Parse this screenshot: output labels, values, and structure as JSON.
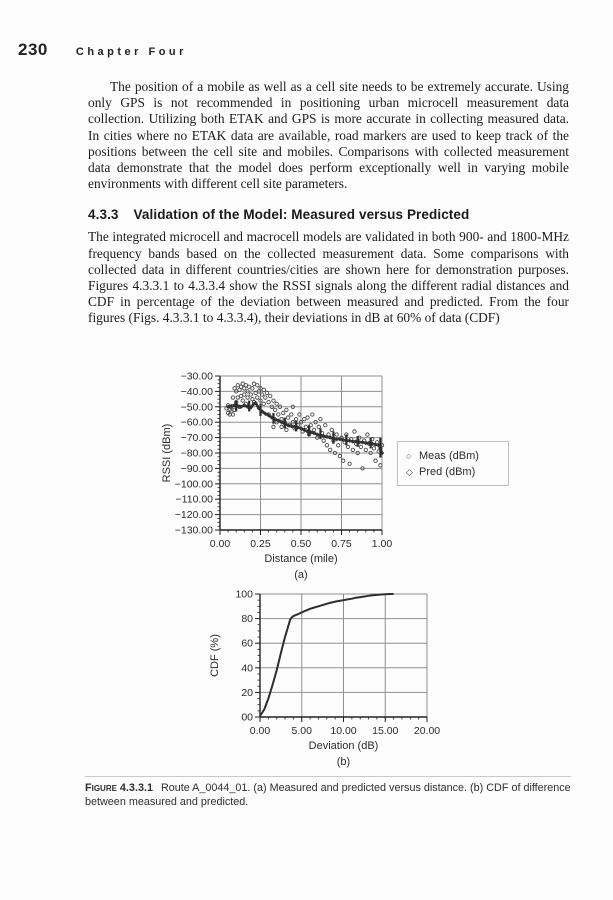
{
  "header": {
    "page_number": "230",
    "chapter_title": "Chapter Four"
  },
  "content": {
    "paragraph_1": "The position of a mobile as well as a cell site needs to be extremely accurate. Using only GPS is not recommended in positioning urban microcell measurement data collection. Utilizing both ETAK and GPS is more accurate in collecting measured data. In cities where no ETAK data are available, road markers are used to keep track of the positions between the cell site and mobiles. Comparisons with collected measurement data demonstrate that the model does perform exceptionally well in varying mobile environments with different cell site parameters.",
    "section_number": "4.3.3",
    "section_title": "Validation of the Model: Measured versus Predicted",
    "paragraph_2": "The integrated microcell and macrocell models are validated in both 900- and 1800-MHz frequency bands based on the collected measurement data. Some comparisons with collected data in different countries/cities are shown here for demonstration purposes. Figures 4.3.3.1 to 4.3.3.4 show the RSSI signals along the different radial distances and CDF in percentage of the deviation between measured and predicted. From the four figures (Figs. 4.3.3.1 to 4.3.3.4), their deviations in dB at 60% of data (CDF)"
  },
  "figure": {
    "caption_label": "Figure 4.3.3.1",
    "caption_text": "Route A_0044_01. (a) Measured and predicted versus distance. (b) CDF of difference between measured and predicted."
  },
  "chart_data": [
    {
      "type": "scatter",
      "sublabel": "(a)",
      "xlabel": "Distance (mile)",
      "ylabel": "RSSI (dBm)",
      "xlim": [
        0,
        1
      ],
      "ylim": [
        -130,
        -30
      ],
      "grid": true,
      "legend_position": "right",
      "xticks": {
        "values": [
          0,
          0.25,
          0.5,
          0.75,
          1
        ],
        "labels": [
          "0.00",
          "0.25",
          "0.50",
          "0.75",
          "1.00"
        ],
        "minor_step": 0.05
      },
      "yticks": {
        "values": [
          -30,
          -40,
          -50,
          -60,
          -70,
          -80,
          -90,
          -100,
          -110,
          -120,
          -130
        ],
        "labels": [
          "−30.00",
          "−40.00",
          "−50.00",
          "−60.00",
          "−70.00",
          "−80.00",
          "−90.00",
          "−100.00",
          "−110.00",
          "−120.00",
          "−130.00"
        ],
        "minor_step": 2.5
      },
      "series": [
        {
          "name": "Meas (dBm)",
          "marker": "circle",
          "points": [
            [
              0.04,
              -51
            ],
            [
              0.05,
              -54
            ],
            [
              0.05,
              -49
            ],
            [
              0.06,
              -55
            ],
            [
              0.06,
              -52
            ],
            [
              0.07,
              -53
            ],
            [
              0.07,
              -50
            ],
            [
              0.08,
              -55
            ],
            [
              0.08,
              -44
            ],
            [
              0.09,
              -38
            ],
            [
              0.09,
              -52
            ],
            [
              0.1,
              -40
            ],
            [
              0.1,
              -47
            ],
            [
              0.11,
              -36
            ],
            [
              0.11,
              -44
            ],
            [
              0.12,
              -39
            ],
            [
              0.12,
              -50
            ],
            [
              0.13,
              -37
            ],
            [
              0.13,
              -43
            ],
            [
              0.14,
              -35
            ],
            [
              0.14,
              -46
            ],
            [
              0.15,
              -38
            ],
            [
              0.15,
              -42
            ],
            [
              0.16,
              -36
            ],
            [
              0.16,
              -48
            ],
            [
              0.17,
              -40
            ],
            [
              0.17,
              -44
            ],
            [
              0.18,
              -37
            ],
            [
              0.18,
              -50
            ],
            [
              0.19,
              -42
            ],
            [
              0.2,
              -38
            ],
            [
              0.2,
              -45
            ],
            [
              0.21,
              -35
            ],
            [
              0.21,
              -47
            ],
            [
              0.22,
              -41
            ],
            [
              0.23,
              -36
            ],
            [
              0.23,
              -44
            ],
            [
              0.24,
              -40
            ],
            [
              0.25,
              -38
            ],
            [
              0.25,
              -46
            ],
            [
              0.26,
              -42
            ],
            [
              0.27,
              -48
            ],
            [
              0.27,
              -39
            ],
            [
              0.28,
              -44
            ],
            [
              0.29,
              -41
            ],
            [
              0.3,
              -47
            ],
            [
              0.3,
              -55
            ],
            [
              0.31,
              -43
            ],
            [
              0.32,
              -50
            ],
            [
              0.33,
              -46
            ],
            [
              0.33,
              -63
            ],
            [
              0.34,
              -52
            ],
            [
              0.35,
              -48
            ],
            [
              0.35,
              -60
            ],
            [
              0.36,
              -55
            ],
            [
              0.37,
              -50
            ],
            [
              0.38,
              -58
            ],
            [
              0.38,
              -63
            ],
            [
              0.39,
              -54
            ],
            [
              0.4,
              -60
            ],
            [
              0.41,
              -52
            ],
            [
              0.41,
              -65
            ],
            [
              0.42,
              -57
            ],
            [
              0.43,
              -62
            ],
            [
              0.44,
              -55
            ],
            [
              0.45,
              -60
            ],
            [
              0.45,
              -50
            ],
            [
              0.46,
              -64
            ],
            [
              0.47,
              -58
            ],
            [
              0.48,
              -62
            ],
            [
              0.49,
              -55
            ],
            [
              0.5,
              -60
            ],
            [
              0.51,
              -66
            ],
            [
              0.52,
              -58
            ],
            [
              0.53,
              -63
            ],
            [
              0.54,
              -57
            ],
            [
              0.55,
              -68
            ],
            [
              0.56,
              -62
            ],
            [
              0.57,
              -55
            ],
            [
              0.58,
              -65
            ],
            [
              0.59,
              -60
            ],
            [
              0.6,
              -70
            ],
            [
              0.61,
              -63
            ],
            [
              0.62,
              -58
            ],
            [
              0.63,
              -67
            ],
            [
              0.64,
              -72
            ],
            [
              0.65,
              -62
            ],
            [
              0.66,
              -75
            ],
            [
              0.67,
              -68
            ],
            [
              0.68,
              -78
            ],
            [
              0.69,
              -65
            ],
            [
              0.7,
              -72
            ],
            [
              0.71,
              -80
            ],
            [
              0.72,
              -68
            ],
            [
              0.73,
              -75
            ],
            [
              0.74,
              -82
            ],
            [
              0.75,
              -70
            ],
            [
              0.76,
              -85
            ],
            [
              0.77,
              -73
            ],
            [
              0.78,
              -68
            ],
            [
              0.79,
              -76
            ],
            [
              0.8,
              -87
            ],
            [
              0.81,
              -71
            ],
            [
              0.82,
              -78
            ],
            [
              0.83,
              -66
            ],
            [
              0.84,
              -74
            ],
            [
              0.85,
              -80
            ],
            [
              0.86,
              -70
            ],
            [
              0.87,
              -76
            ],
            [
              0.88,
              -90
            ],
            [
              0.89,
              -72
            ],
            [
              0.9,
              -78
            ],
            [
              0.91,
              -68
            ],
            [
              0.92,
              -74
            ],
            [
              0.93,
              -80
            ],
            [
              0.94,
              -71
            ],
            [
              0.95,
              -77
            ],
            [
              0.96,
              -85
            ],
            [
              0.97,
              -73
            ],
            [
              0.98,
              -79
            ],
            [
              0.99,
              -88
            ],
            [
              1.0,
              -75
            ]
          ]
        },
        {
          "name": "Pred (dBm)",
          "marker": "diamond",
          "line": true,
          "line_width": 2.6,
          "points": [
            [
              0.05,
              -50
            ],
            [
              0.07,
              -49.5
            ],
            [
              0.09,
              -49
            ],
            [
              0.11,
              -49.5
            ],
            [
              0.13,
              -50
            ],
            [
              0.15,
              -49
            ],
            [
              0.17,
              -50
            ],
            [
              0.19,
              -50.5
            ],
            [
              0.21,
              -48
            ],
            [
              0.22,
              -47.5
            ],
            [
              0.24,
              -51
            ],
            [
              0.26,
              -53
            ],
            [
              0.28,
              -54.5
            ],
            [
              0.3,
              -55.5
            ],
            [
              0.32,
              -57
            ],
            [
              0.34,
              -58
            ],
            [
              0.36,
              -59
            ],
            [
              0.38,
              -60
            ],
            [
              0.4,
              -61
            ],
            [
              0.42,
              -62
            ],
            [
              0.44,
              -62.5
            ],
            [
              0.46,
              -63
            ],
            [
              0.48,
              -63.5
            ],
            [
              0.5,
              -64
            ],
            [
              0.52,
              -65
            ],
            [
              0.54,
              -66
            ],
            [
              0.56,
              -66.5
            ],
            [
              0.58,
              -67
            ],
            [
              0.6,
              -68
            ],
            [
              0.62,
              -68.5
            ],
            [
              0.64,
              -69
            ],
            [
              0.66,
              -69.5
            ],
            [
              0.68,
              -70
            ],
            [
              0.7,
              -70.5
            ],
            [
              0.72,
              -71
            ],
            [
              0.74,
              -71
            ],
            [
              0.76,
              -71.5
            ],
            [
              0.78,
              -72
            ],
            [
              0.8,
              -72
            ],
            [
              0.82,
              -72.5
            ],
            [
              0.84,
              -72.5
            ],
            [
              0.86,
              -73
            ],
            [
              0.88,
              -73
            ],
            [
              0.9,
              -73.5
            ],
            [
              0.92,
              -73.5
            ],
            [
              0.94,
              -74
            ],
            [
              0.96,
              -74.5
            ],
            [
              0.98,
              -75
            ],
            [
              0.99,
              -77
            ],
            [
              1.0,
              -80
            ]
          ],
          "spread_bars": [
            [
              0.1,
              -46,
              -53
            ],
            [
              0.18,
              -46,
              -53
            ],
            [
              0.25,
              -48,
              -56
            ],
            [
              0.33,
              -54,
              -61
            ],
            [
              0.4,
              -57,
              -64
            ],
            [
              0.47,
              -59,
              -66
            ],
            [
              0.55,
              -62,
              -69
            ],
            [
              0.62,
              -64,
              -71
            ],
            [
              0.7,
              -66,
              -74
            ],
            [
              0.78,
              -68,
              -75
            ],
            [
              0.85,
              -69,
              -76
            ],
            [
              0.93,
              -70,
              -77
            ],
            [
              0.99,
              -70,
              -83
            ]
          ]
        }
      ]
    },
    {
      "type": "line",
      "sublabel": "(b)",
      "xlabel": "Deviation (dB)",
      "ylabel": "CDF (%)",
      "xlim": [
        0,
        20
      ],
      "ylim": [
        0,
        100
      ],
      "grid": true,
      "xticks": {
        "values": [
          0,
          5,
          10,
          15,
          20
        ],
        "labels": [
          "0.00",
          "5.00",
          "10.00",
          "15.00",
          "20.00"
        ],
        "minor_step": 1
      },
      "yticks": {
        "values": [
          0,
          20,
          40,
          60,
          80,
          100
        ],
        "labels": [
          "00",
          "20",
          "40",
          "60",
          "80",
          "100"
        ],
        "minor_step": 5
      },
      "series": [
        {
          "name": "CDF",
          "line": true,
          "line_width": 2,
          "points": [
            [
              0,
              1
            ],
            [
              0.5,
              6
            ],
            [
              1,
              15
            ],
            [
              1.5,
              26
            ],
            [
              2,
              38
            ],
            [
              2.5,
              52
            ],
            [
              3,
              65
            ],
            [
              3.3,
              72
            ],
            [
              3.6,
              79
            ],
            [
              3.8,
              81
            ],
            [
              4,
              82
            ],
            [
              4.5,
              83.5
            ],
            [
              5,
              85
            ],
            [
              5.5,
              86.5
            ],
            [
              6,
              88
            ],
            [
              6.5,
              89
            ],
            [
              7,
              90
            ],
            [
              7.5,
              91
            ],
            [
              8,
              92
            ],
            [
              8.5,
              93
            ],
            [
              9,
              93.8
            ],
            [
              9.5,
              94.4
            ],
            [
              10,
              95
            ],
            [
              10.5,
              95.6
            ],
            [
              11,
              96.2
            ],
            [
              11.5,
              97
            ],
            [
              12,
              97.5
            ],
            [
              12.5,
              98
            ],
            [
              13,
              98.5
            ],
            [
              13.5,
              99
            ],
            [
              14,
              99.3
            ],
            [
              14.5,
              99.6
            ],
            [
              15,
              99.8
            ],
            [
              15.5,
              100
            ],
            [
              16,
              100
            ]
          ]
        }
      ]
    }
  ]
}
